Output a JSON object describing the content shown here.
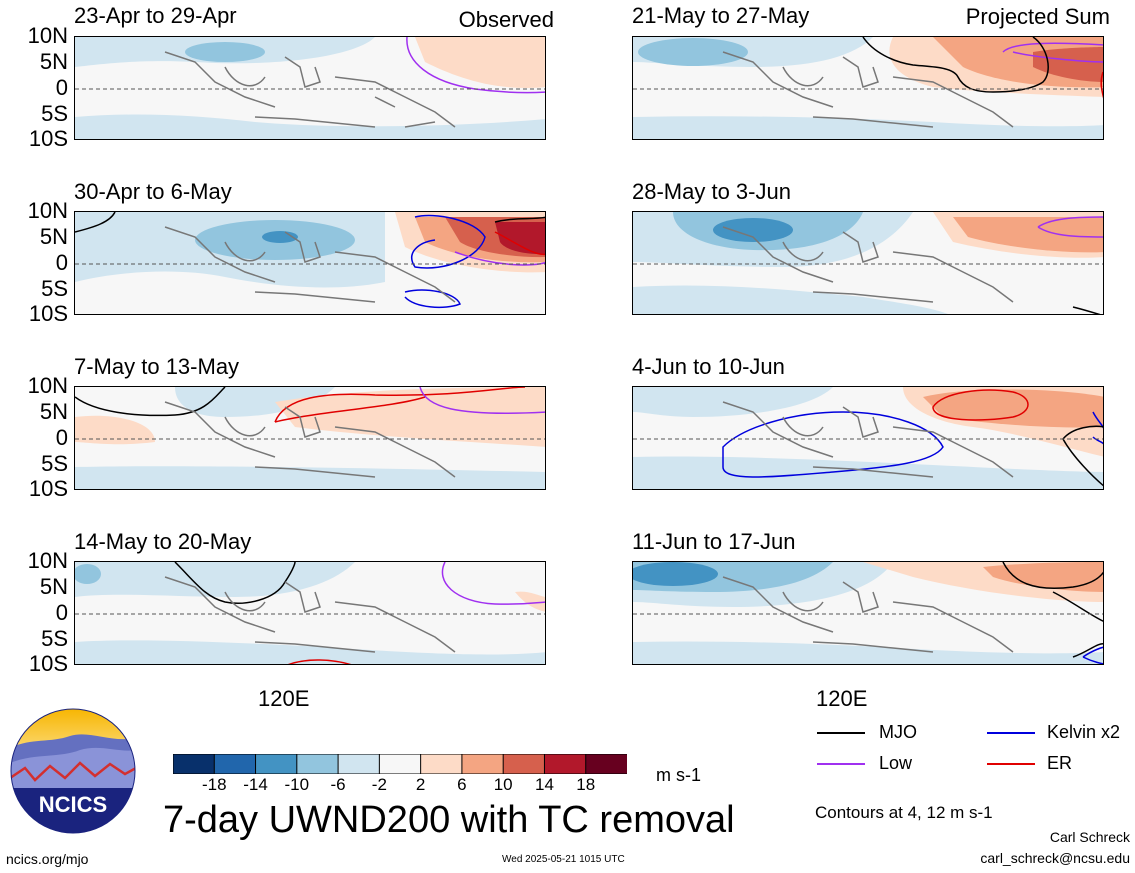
{
  "header": {
    "left_label": "Observed",
    "right_label": "Projected Sum"
  },
  "y_ticks": [
    "10N",
    "5N",
    "0",
    "5S",
    "10S"
  ],
  "x_tick": "120E",
  "panels": [
    {
      "title": "23-Apr to 29-Apr",
      "column": "left"
    },
    {
      "title": "30-Apr to 6-May",
      "column": "left"
    },
    {
      "title": "7-May to 13-May",
      "column": "left"
    },
    {
      "title": "14-May to 20-May",
      "column": "left"
    },
    {
      "title": "21-May to 27-May",
      "column": "right"
    },
    {
      "title": "28-May to 3-Jun",
      "column": "right"
    },
    {
      "title": "4-Jun to 10-Jun",
      "column": "right"
    },
    {
      "title": "11-Jun to 17-Jun",
      "column": "right"
    }
  ],
  "colorbar": {
    "labels": [
      "-18",
      "-14",
      "-10",
      "-6",
      "-2",
      "2",
      "6",
      "10",
      "14",
      "18"
    ],
    "colors": [
      "#08306b",
      "#2166ac",
      "#4393c3",
      "#92c5de",
      "#d1e5f0",
      "#f7f7f7",
      "#fddbc7",
      "#f4a582",
      "#d6604d",
      "#b2182b",
      "#67001f"
    ],
    "unit": "m s-1"
  },
  "legend": {
    "items": [
      {
        "label": "MJO",
        "color": "#000000"
      },
      {
        "label": "Kelvin x2",
        "color": "#0000dd"
      },
      {
        "label": "Low",
        "color": "#a030f0"
      },
      {
        "label": "ER",
        "color": "#e00000"
      }
    ],
    "contour_note": "Contours at 4, 12 m s-1"
  },
  "main_title": "7-day UWND200 with TC removal",
  "logo_text": "NCICS",
  "footer": {
    "url": "ncics.org/mjo",
    "timestamp": "Wed 2025-05-21 1015 UTC",
    "author": "Carl Schreck",
    "email": "carl_schreck@ncsu.edu"
  }
}
